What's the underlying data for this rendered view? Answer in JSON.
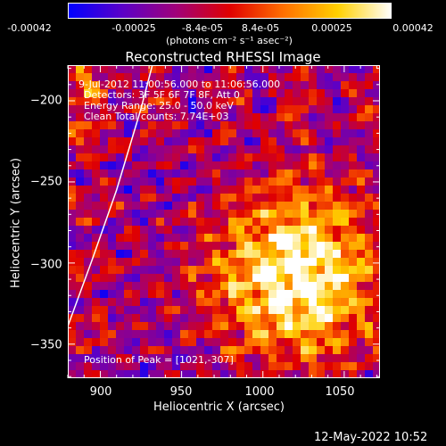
{
  "colorbar": {
    "tick_labels": [
      "-0.00042",
      "-0.00025",
      "-8.4e-05",
      "8.4e-05",
      "0.00025",
      "0.00042"
    ],
    "unit_label": "(photons cm⁻² s⁻¹ asec⁻²)",
    "colors": [
      "#0000ff",
      "#5a00c8",
      "#a0007a",
      "#e00000",
      "#ff7000",
      "#ffd000",
      "#ffffff"
    ]
  },
  "annotations": {
    "time": "9-Jul-2012 11:00:56.000 to 11:06:56.000",
    "detectors": "Detectors: 3F 5F 6F 7F 8F, Att 0",
    "energy": "Energy Range: 25.0 - 50.0 keV",
    "clean": "Clean     Total counts: 7.74E+03",
    "peak": "Position of Peak = [1021,-307]"
  },
  "footer": {
    "timestamp": "12-May-2022 10:52"
  },
  "chart_data": {
    "type": "heatmap",
    "title": "Reconstructed RHESSI Image",
    "xlabel": "Heliocentric X (arcsec)",
    "ylabel": "Heliocentric Y (arcsec)",
    "xlim": [
      880,
      1072
    ],
    "ylim": [
      -371,
      -178
    ],
    "x_ticks": [
      900,
      950,
      1000,
      1050
    ],
    "y_ticks": [
      -200,
      -250,
      -300,
      -350
    ],
    "x_tick_labels": [
      "900",
      "950",
      "1000",
      "1050"
    ],
    "y_tick_labels": [
      "−200",
      "−250",
      "−300",
      "−350"
    ],
    "colorbar_range": [
      -0.00042,
      0.00042
    ],
    "peak": {
      "x": 1021,
      "y": -307
    },
    "limb_curve": [
      [
        880,
        -339
      ],
      [
        895,
        -298
      ],
      [
        910,
        -255
      ],
      [
        925,
        -205
      ],
      [
        932,
        -178
      ]
    ]
  }
}
